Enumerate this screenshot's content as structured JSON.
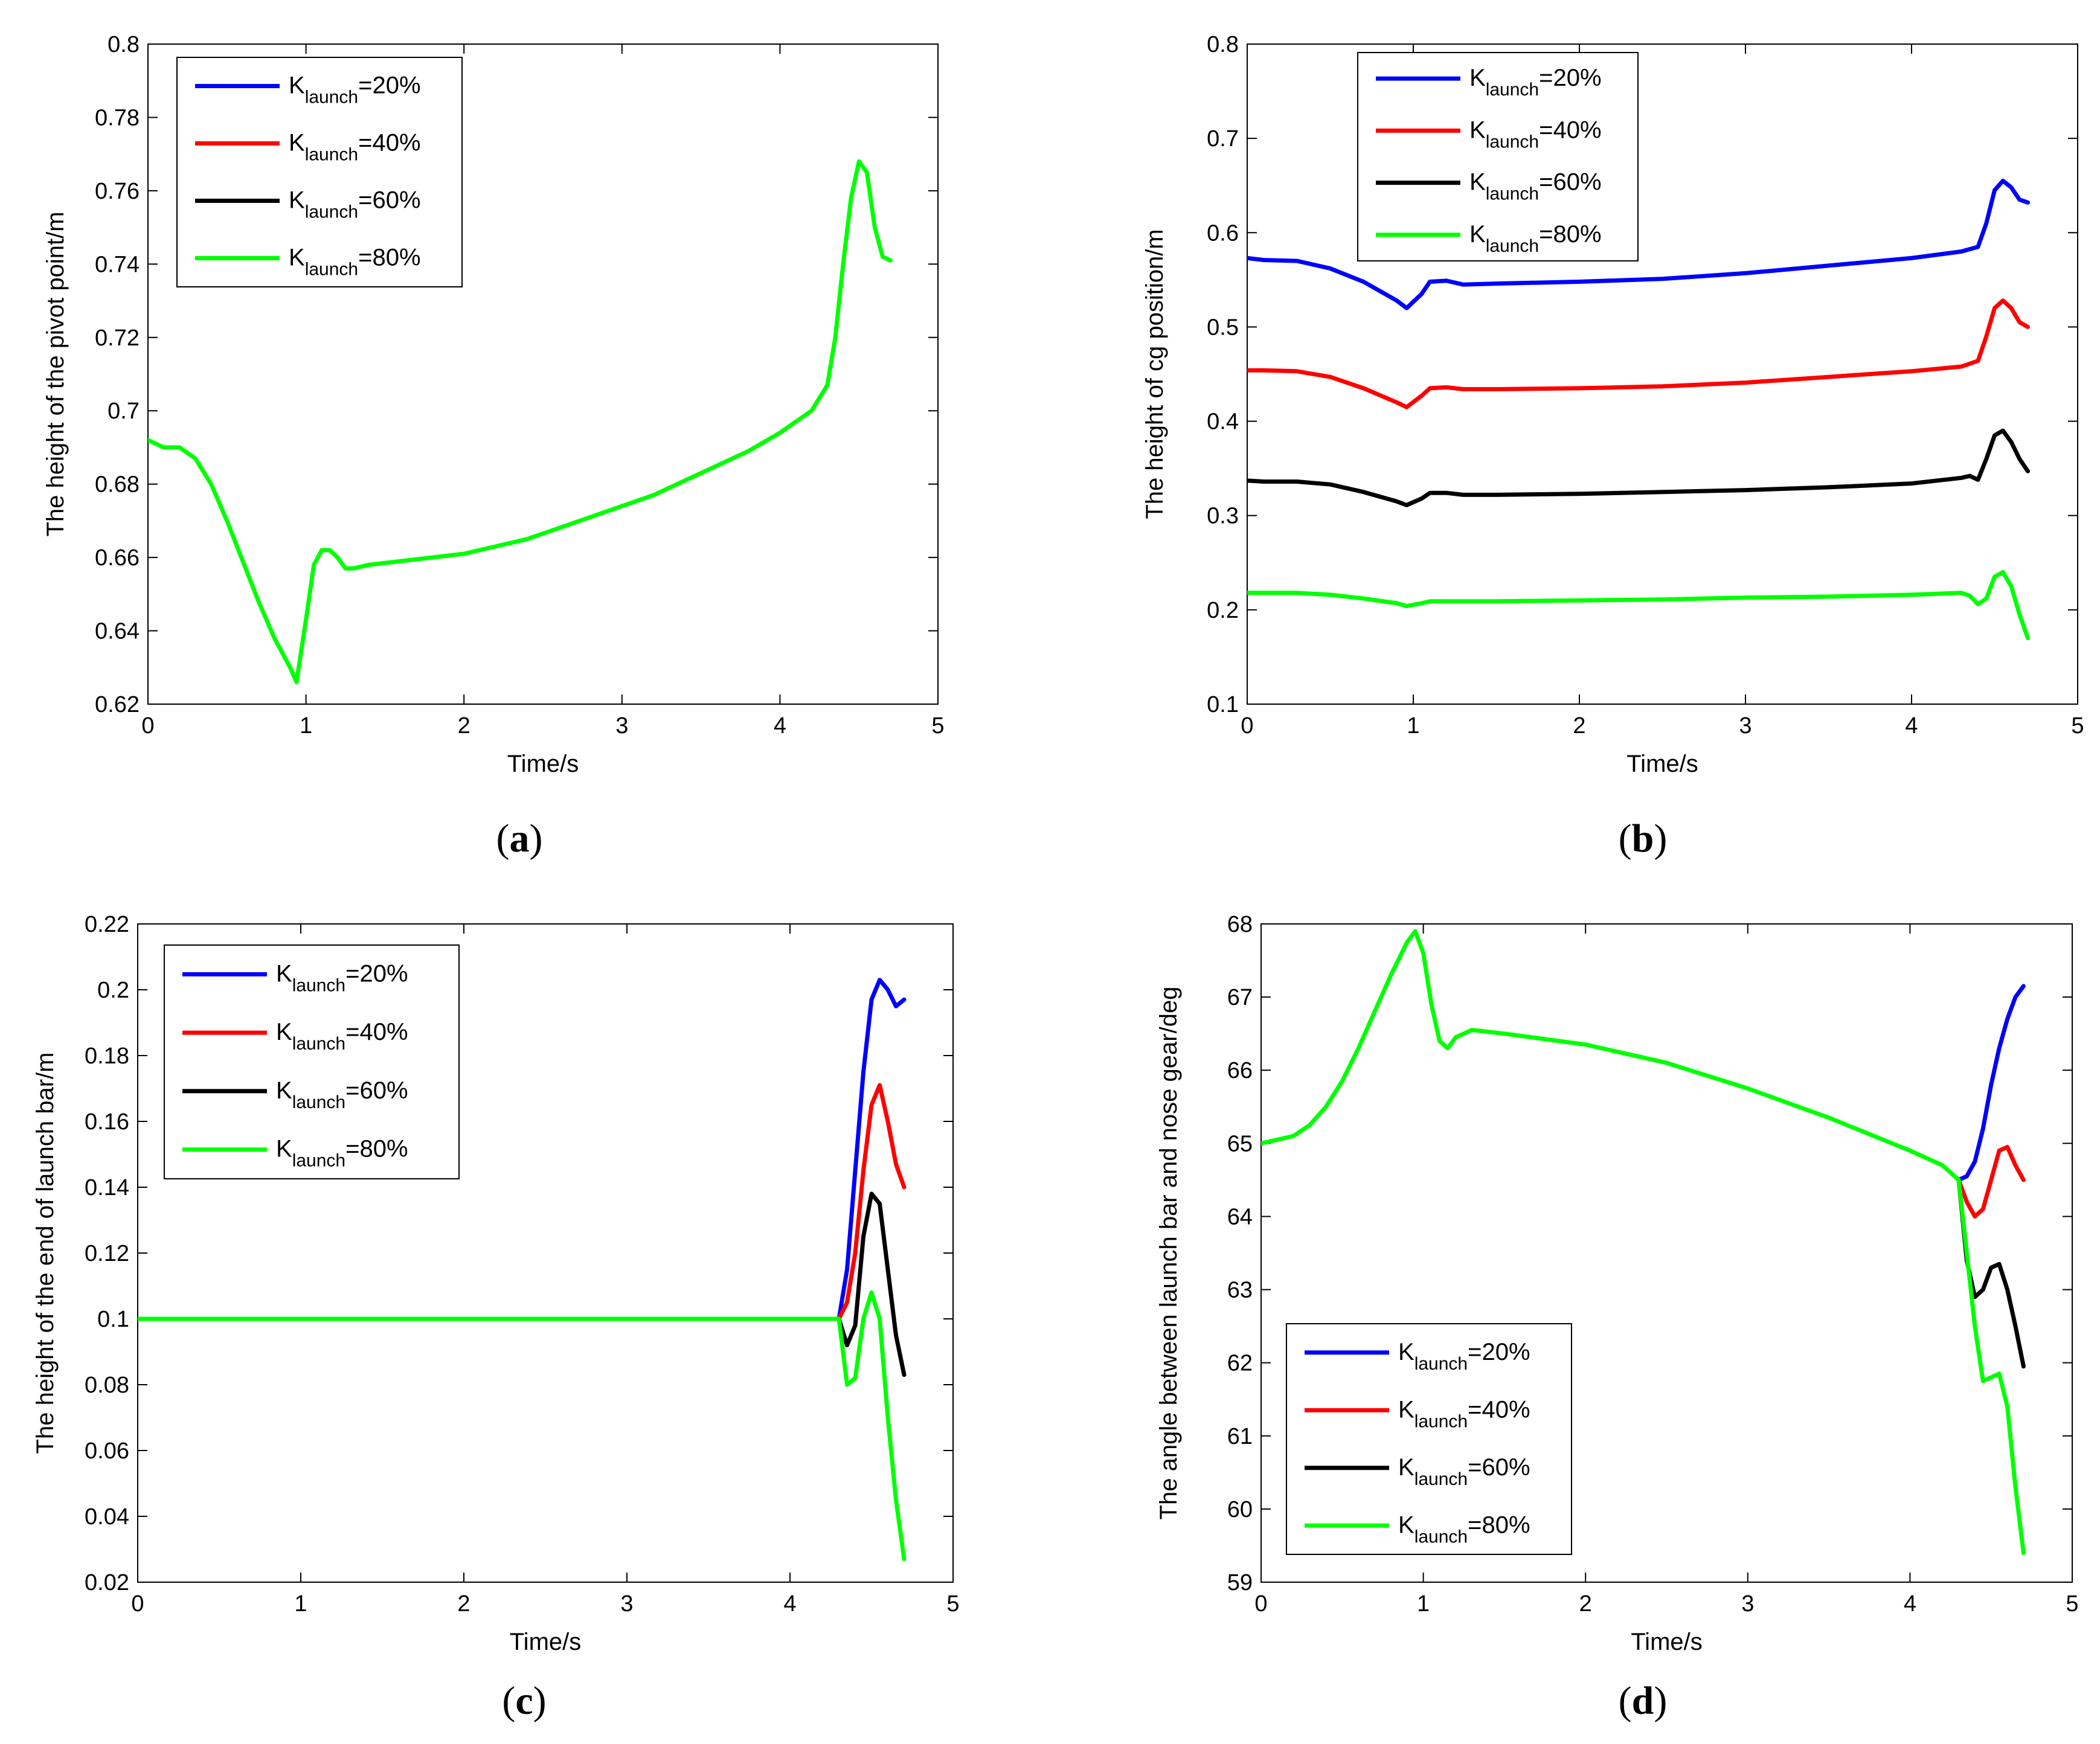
{
  "colors": {
    "k20": "#0000ff",
    "k40": "#ff0000",
    "k60": "#000000",
    "k80": "#00ff00"
  },
  "chart_data": [
    {
      "type": "line",
      "caption": "a",
      "xlabel": "Time/s",
      "ylabel": "The height of the pivot point/m",
      "xlim": [
        0,
        5
      ],
      "ylim": [
        0.62,
        0.8
      ],
      "xticks": [
        "0",
        "1",
        "2",
        "3",
        "4",
        "5"
      ],
      "yticks": [
        "0.62",
        "0.64",
        "0.66",
        "0.68",
        "0.7",
        "0.72",
        "0.74",
        "0.76",
        "0.78",
        "0.8"
      ],
      "legend_position": "top-left",
      "legend": [
        {
          "k": "K",
          "sub": "launch",
          "val": "=20%",
          "color": "k20"
        },
        {
          "k": "K",
          "sub": "launch",
          "val": "=40%",
          "color": "k40"
        },
        {
          "k": "K",
          "sub": "launch",
          "val": "=60%",
          "color": "k60"
        },
        {
          "k": "K",
          "sub": "launch",
          "val": "=80%",
          "color": "k80"
        }
      ],
      "series": [
        {
          "name": "Klaunch=80%",
          "color": "k80",
          "x": [
            0,
            0.1,
            0.2,
            0.3,
            0.4,
            0.5,
            0.6,
            0.7,
            0.8,
            0.9,
            0.94,
            1.0,
            1.05,
            1.1,
            1.15,
            1.2,
            1.25,
            1.3,
            1.4,
            1.6,
            1.8,
            2.0,
            2.2,
            2.4,
            2.6,
            2.8,
            3.0,
            3.2,
            3.4,
            3.6,
            3.8,
            4.0,
            4.1,
            4.2,
            4.3,
            4.35,
            4.4,
            4.45,
            4.5,
            4.55,
            4.6,
            4.65,
            4.7
          ],
          "y": [
            0.692,
            0.69,
            0.69,
            0.687,
            0.68,
            0.67,
            0.659,
            0.648,
            0.638,
            0.63,
            0.626,
            0.643,
            0.658,
            0.662,
            0.662,
            0.66,
            0.657,
            0.657,
            0.658,
            0.659,
            0.66,
            0.661,
            0.663,
            0.665,
            0.668,
            0.671,
            0.674,
            0.677,
            0.681,
            0.685,
            0.689,
            0.694,
            0.697,
            0.7,
            0.707,
            0.72,
            0.74,
            0.758,
            0.768,
            0.765,
            0.75,
            0.742,
            0.741
          ]
        }
      ]
    },
    {
      "type": "line",
      "caption": "b",
      "xlabel": "Time/s",
      "ylabel": "The height of cg position/m",
      "xlim": [
        0,
        5
      ],
      "ylim": [
        0.1,
        0.8
      ],
      "xticks": [
        "0",
        "1",
        "2",
        "3",
        "4",
        "5"
      ],
      "yticks": [
        "0.1",
        "0.2",
        "0.3",
        "0.4",
        "0.5",
        "0.6",
        "0.7",
        "0.8"
      ],
      "legend_position": "top-left",
      "legend": [
        {
          "k": "K",
          "sub": "launch",
          "val": "=20%",
          "color": "k20"
        },
        {
          "k": "K",
          "sub": "launch",
          "val": "=40%",
          "color": "k40"
        },
        {
          "k": "K",
          "sub": "launch",
          "val": "=60%",
          "color": "k60"
        },
        {
          "k": "K",
          "sub": "launch",
          "val": "=80%",
          "color": "k80"
        }
      ],
      "series": [
        {
          "name": "Klaunch=20%",
          "color": "k20",
          "x": [
            0,
            0.1,
            0.3,
            0.5,
            0.7,
            0.9,
            0.96,
            1.05,
            1.1,
            1.2,
            1.3,
            1.5,
            2.0,
            2.5,
            3.0,
            3.5,
            4.0,
            4.3,
            4.4,
            4.45,
            4.5,
            4.55,
            4.6,
            4.65,
            4.7
          ],
          "y": [
            0.573,
            0.571,
            0.57,
            0.562,
            0.548,
            0.528,
            0.52,
            0.535,
            0.548,
            0.549,
            0.545,
            0.546,
            0.548,
            0.551,
            0.557,
            0.565,
            0.573,
            0.58,
            0.585,
            0.61,
            0.645,
            0.655,
            0.648,
            0.635,
            0.632
          ]
        },
        {
          "name": "Klaunch=40%",
          "color": "k40",
          "x": [
            0,
            0.1,
            0.3,
            0.5,
            0.7,
            0.9,
            0.96,
            1.05,
            1.1,
            1.2,
            1.3,
            1.5,
            2.0,
            2.5,
            3.0,
            3.5,
            4.0,
            4.3,
            4.4,
            4.45,
            4.5,
            4.55,
            4.6,
            4.65,
            4.7
          ],
          "y": [
            0.454,
            0.454,
            0.453,
            0.447,
            0.435,
            0.42,
            0.415,
            0.427,
            0.435,
            0.436,
            0.434,
            0.434,
            0.435,
            0.437,
            0.441,
            0.447,
            0.453,
            0.458,
            0.464,
            0.49,
            0.52,
            0.528,
            0.52,
            0.505,
            0.5
          ]
        },
        {
          "name": "Klaunch=60%",
          "color": "k60",
          "x": [
            0,
            0.1,
            0.3,
            0.5,
            0.7,
            0.9,
            0.96,
            1.05,
            1.1,
            1.2,
            1.3,
            1.5,
            2.0,
            2.5,
            3.0,
            3.5,
            4.0,
            4.3,
            4.35,
            4.4,
            4.45,
            4.5,
            4.55,
            4.6,
            4.65,
            4.7
          ],
          "y": [
            0.337,
            0.336,
            0.336,
            0.333,
            0.325,
            0.315,
            0.311,
            0.318,
            0.324,
            0.324,
            0.322,
            0.322,
            0.323,
            0.325,
            0.327,
            0.33,
            0.334,
            0.34,
            0.342,
            0.338,
            0.36,
            0.385,
            0.39,
            0.378,
            0.36,
            0.347
          ]
        },
        {
          "name": "Klaunch=80%",
          "color": "k80",
          "x": [
            0,
            0.1,
            0.3,
            0.5,
            0.7,
            0.9,
            0.96,
            1.05,
            1.1,
            1.3,
            1.5,
            2.0,
            2.5,
            3.0,
            3.5,
            4.0,
            4.3,
            4.35,
            4.4,
            4.45,
            4.5,
            4.55,
            4.6,
            4.65,
            4.7
          ],
          "y": [
            0.218,
            0.218,
            0.218,
            0.216,
            0.212,
            0.207,
            0.204,
            0.207,
            0.209,
            0.209,
            0.209,
            0.21,
            0.211,
            0.213,
            0.214,
            0.216,
            0.218,
            0.215,
            0.206,
            0.212,
            0.235,
            0.24,
            0.225,
            0.195,
            0.17
          ]
        }
      ]
    },
    {
      "type": "line",
      "caption": "c",
      "xlabel": "Time/s",
      "ylabel": "The height of the end of launch bar/m",
      "xlim": [
        0,
        5
      ],
      "ylim": [
        0.02,
        0.22
      ],
      "xticks": [
        "0",
        "1",
        "2",
        "3",
        "4",
        "5"
      ],
      "yticks": [
        "0.02",
        "0.04",
        "0.06",
        "0.08",
        "0.1",
        "0.12",
        "0.14",
        "0.16",
        "0.18",
        "0.2",
        "0.22"
      ],
      "legend_position": "top-left",
      "legend": [
        {
          "k": "K",
          "sub": "launch",
          "val": "=20%",
          "color": "k20"
        },
        {
          "k": "K",
          "sub": "launch",
          "val": "=40%",
          "color": "k40"
        },
        {
          "k": "K",
          "sub": "launch",
          "val": "=60%",
          "color": "k60"
        },
        {
          "k": "K",
          "sub": "launch",
          "val": "=80%",
          "color": "k80"
        }
      ],
      "series": [
        {
          "name": "Klaunch=20%",
          "color": "k20",
          "x": [
            4.3,
            4.35,
            4.4,
            4.45,
            4.5,
            4.55,
            4.6,
            4.65,
            4.7
          ],
          "y": [
            0.1,
            0.115,
            0.145,
            0.175,
            0.197,
            0.203,
            0.2,
            0.195,
            0.197
          ]
        },
        {
          "name": "Klaunch=40%",
          "color": "k40",
          "x": [
            4.3,
            4.35,
            4.4,
            4.45,
            4.5,
            4.55,
            4.6,
            4.65,
            4.7
          ],
          "y": [
            0.1,
            0.105,
            0.12,
            0.145,
            0.165,
            0.171,
            0.16,
            0.147,
            0.14
          ]
        },
        {
          "name": "Klaunch=60%",
          "color": "k60",
          "x": [
            4.3,
            4.35,
            4.4,
            4.45,
            4.5,
            4.55,
            4.6,
            4.65,
            4.7
          ],
          "y": [
            0.1,
            0.092,
            0.098,
            0.125,
            0.138,
            0.135,
            0.115,
            0.095,
            0.083
          ]
        },
        {
          "name": "Klaunch=80%",
          "color": "k80",
          "x": [
            0,
            1,
            2,
            3,
            4,
            4.3,
            4.35,
            4.4,
            4.45,
            4.5,
            4.55,
            4.6,
            4.65,
            4.7
          ],
          "y": [
            0.1,
            0.1,
            0.1,
            0.1,
            0.1,
            0.1,
            0.08,
            0.082,
            0.1,
            0.108,
            0.1,
            0.07,
            0.045,
            0.027
          ]
        }
      ]
    },
    {
      "type": "line",
      "caption": "d",
      "xlabel": "Time/s",
      "ylabel": "The angle between launch bar and nose gear/deg",
      "xlim": [
        0,
        5
      ],
      "ylim": [
        59,
        68
      ],
      "xticks": [
        "0",
        "1",
        "2",
        "3",
        "4",
        "5"
      ],
      "yticks": [
        "59",
        "60",
        "61",
        "62",
        "63",
        "64",
        "65",
        "66",
        "67",
        "68"
      ],
      "legend_position": "bottom-left",
      "legend": [
        {
          "k": "K",
          "sub": "launch",
          "val": "=20%",
          "color": "k20"
        },
        {
          "k": "K",
          "sub": "launch",
          "val": "=40%",
          "color": "k40"
        },
        {
          "k": "K",
          "sub": "launch",
          "val": "=60%",
          "color": "k60"
        },
        {
          "k": "K",
          "sub": "launch",
          "val": "=80%",
          "color": "k80"
        }
      ],
      "series": [
        {
          "name": "Klaunch=20%",
          "color": "k20",
          "x": [
            4.3,
            4.35,
            4.4,
            4.45,
            4.5,
            4.55,
            4.6,
            4.65,
            4.7
          ],
          "y": [
            64.5,
            64.55,
            64.75,
            65.2,
            65.8,
            66.3,
            66.7,
            67.0,
            67.15
          ]
        },
        {
          "name": "Klaunch=40%",
          "color": "k40",
          "x": [
            4.3,
            4.35,
            4.4,
            4.45,
            4.5,
            4.55,
            4.6,
            4.65,
            4.7
          ],
          "y": [
            64.5,
            64.2,
            64.0,
            64.1,
            64.5,
            64.9,
            64.95,
            64.7,
            64.5
          ]
        },
        {
          "name": "Klaunch=60%",
          "color": "k60",
          "x": [
            4.3,
            4.35,
            4.4,
            4.45,
            4.5,
            4.55,
            4.6,
            4.65,
            4.7
          ],
          "y": [
            64.5,
            63.4,
            62.9,
            63.0,
            63.3,
            63.35,
            63.0,
            62.5,
            61.95
          ]
        },
        {
          "name": "Klaunch=80%",
          "color": "k80",
          "x": [
            0,
            0.1,
            0.2,
            0.3,
            0.4,
            0.5,
            0.6,
            0.7,
            0.8,
            0.9,
            0.95,
            1.0,
            1.05,
            1.1,
            1.15,
            1.2,
            1.3,
            1.5,
            2.0,
            2.5,
            3.0,
            3.5,
            4.0,
            4.2,
            4.3,
            4.35,
            4.4,
            4.45,
            4.5,
            4.55,
            4.6,
            4.65,
            4.7
          ],
          "y": [
            65.0,
            65.05,
            65.1,
            65.25,
            65.5,
            65.85,
            66.3,
            66.8,
            67.3,
            67.75,
            67.9,
            67.6,
            66.9,
            66.4,
            66.3,
            66.45,
            66.55,
            66.5,
            66.35,
            66.1,
            65.75,
            65.35,
            64.9,
            64.7,
            64.5,
            63.5,
            62.5,
            61.75,
            61.8,
            61.85,
            61.4,
            60.3,
            59.4
          ]
        }
      ]
    }
  ]
}
